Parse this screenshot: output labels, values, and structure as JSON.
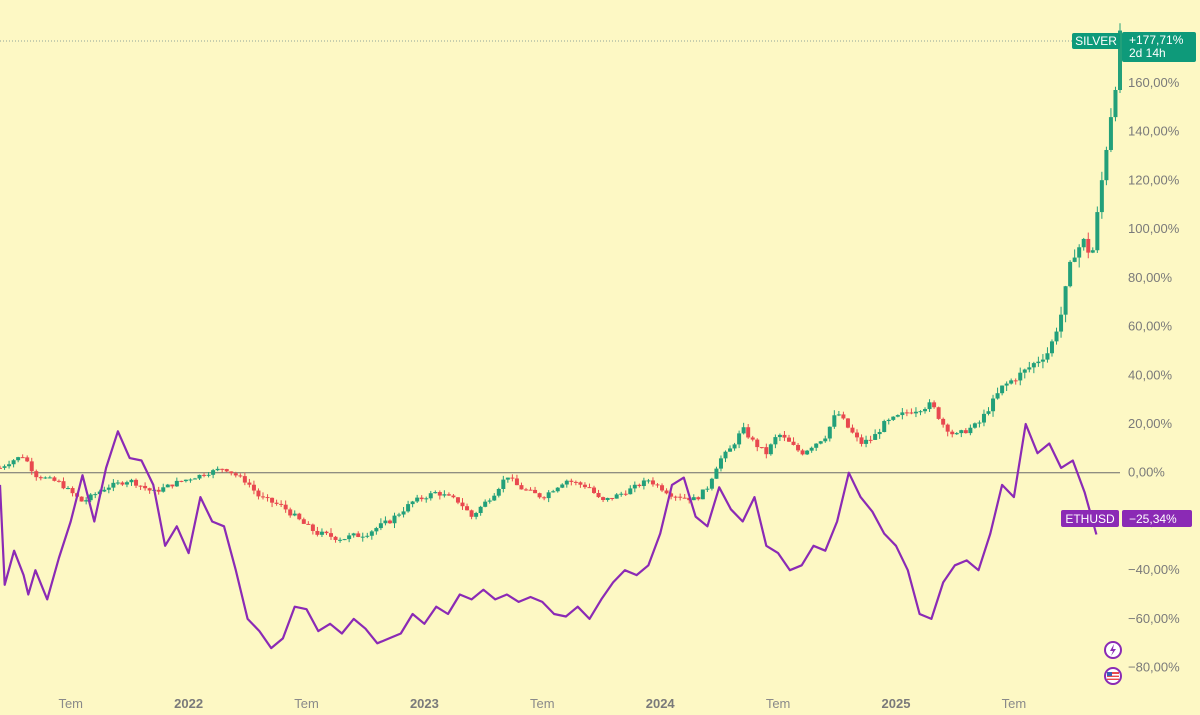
{
  "colors": {
    "background": "#fdf8c4",
    "silver_up": "#22a07a",
    "silver_down": "#e8494f",
    "silver_badge": "#0e9a7a",
    "eth_line": "#8b2ab5",
    "eth_badge": "#8b2ab5",
    "zero_line": "#6b6b6b"
  },
  "chart_data": {
    "type": "line",
    "title": "",
    "xlabel": "",
    "ylabel": "",
    "ylim": [
      -90,
      185
    ],
    "xlim": [
      2021.2,
      2025.95
    ],
    "y_ticks": [
      -80,
      -60,
      -40,
      -20,
      0,
      20,
      40,
      60,
      80,
      100,
      120,
      140,
      160
    ],
    "y_tick_labels": [
      "−80,00%",
      "−60,00%",
      "−40,00%",
      "−20,00%",
      "0,00%",
      "20,00%",
      "40,00%",
      "60,00%",
      "80,00%",
      "100,00%",
      "120,00%",
      "140,00%",
      "160,00%"
    ],
    "x_ticks": [
      {
        "x": 2021.5,
        "label": "Tem",
        "year": false
      },
      {
        "x": 2022.0,
        "label": "2022",
        "year": true
      },
      {
        "x": 2022.5,
        "label": "Tem",
        "year": false
      },
      {
        "x": 2023.0,
        "label": "2023",
        "year": true
      },
      {
        "x": 2023.5,
        "label": "Tem",
        "year": false
      },
      {
        "x": 2024.0,
        "label": "2024",
        "year": true
      },
      {
        "x": 2024.5,
        "label": "Tem",
        "year": false
      },
      {
        "x": 2025.0,
        "label": "2025",
        "year": true
      },
      {
        "x": 2025.5,
        "label": "Tem",
        "year": false
      }
    ],
    "grid": false,
    "series": [
      {
        "name": "SILVER",
        "kind": "candlestick",
        "last_value_label": "+177,71%",
        "countdown_label": "2d 14h",
        "anchors": [
          [
            2021.2,
            2
          ],
          [
            2021.25,
            5
          ],
          [
            2021.3,
            7
          ],
          [
            2021.35,
            -1
          ],
          [
            2021.45,
            -4
          ],
          [
            2021.55,
            -12
          ],
          [
            2021.65,
            -6
          ],
          [
            2021.75,
            -3
          ],
          [
            2021.85,
            -8
          ],
          [
            2021.95,
            -4
          ],
          [
            2022.05,
            -1
          ],
          [
            2022.15,
            2
          ],
          [
            2022.25,
            -4
          ],
          [
            2022.3,
            -10
          ],
          [
            2022.4,
            -14
          ],
          [
            2022.5,
            -22
          ],
          [
            2022.55,
            -25
          ],
          [
            2022.65,
            -27
          ],
          [
            2022.75,
            -25
          ],
          [
            2022.85,
            -20
          ],
          [
            2022.95,
            -12
          ],
          [
            2023.05,
            -8
          ],
          [
            2023.15,
            -12
          ],
          [
            2023.2,
            -18
          ],
          [
            2023.3,
            -8
          ],
          [
            2023.35,
            -1
          ],
          [
            2023.4,
            -6
          ],
          [
            2023.5,
            -10
          ],
          [
            2023.6,
            -3
          ],
          [
            2023.7,
            -6
          ],
          [
            2023.75,
            -12
          ],
          [
            2023.85,
            -8
          ],
          [
            2023.95,
            -3
          ],
          [
            2024.05,
            -9
          ],
          [
            2024.15,
            -11
          ],
          [
            2024.2,
            -6
          ],
          [
            2024.25,
            5
          ],
          [
            2024.3,
            10
          ],
          [
            2024.35,
            18
          ],
          [
            2024.4,
            12
          ],
          [
            2024.45,
            8
          ],
          [
            2024.5,
            16
          ],
          [
            2024.55,
            12
          ],
          [
            2024.6,
            8
          ],
          [
            2024.7,
            15
          ],
          [
            2024.75,
            25
          ],
          [
            2024.8,
            18
          ],
          [
            2024.85,
            12
          ],
          [
            2024.9,
            14
          ],
          [
            2024.95,
            20
          ],
          [
            2025.05,
            25
          ],
          [
            2025.15,
            28
          ],
          [
            2025.2,
            20
          ],
          [
            2025.25,
            15
          ],
          [
            2025.35,
            20
          ],
          [
            2025.45,
            35
          ],
          [
            2025.55,
            42
          ],
          [
            2025.65,
            50
          ],
          [
            2025.7,
            65
          ],
          [
            2025.75,
            90
          ],
          [
            2025.8,
            95
          ],
          [
            2025.83,
            88
          ],
          [
            2025.86,
            110
          ],
          [
            2025.9,
            140
          ],
          [
            2025.93,
            160
          ],
          [
            2025.95,
            177.71
          ]
        ]
      },
      {
        "name": "ETHUSD",
        "kind": "line",
        "last_value_label": "−25,34%",
        "points": [
          [
            2021.2,
            -5
          ],
          [
            2021.22,
            -46
          ],
          [
            2021.26,
            -32
          ],
          [
            2021.3,
            -42
          ],
          [
            2021.32,
            -50
          ],
          [
            2021.35,
            -40
          ],
          [
            2021.4,
            -52
          ],
          [
            2021.45,
            -35
          ],
          [
            2021.5,
            -20
          ],
          [
            2021.55,
            -1
          ],
          [
            2021.6,
            -20
          ],
          [
            2021.65,
            2
          ],
          [
            2021.7,
            17
          ],
          [
            2021.75,
            6
          ],
          [
            2021.8,
            5
          ],
          [
            2021.85,
            -5
          ],
          [
            2021.9,
            -30
          ],
          [
            2021.95,
            -22
          ],
          [
            2022.0,
            -33
          ],
          [
            2022.05,
            -10
          ],
          [
            2022.1,
            -20
          ],
          [
            2022.15,
            -22
          ],
          [
            2022.2,
            -40
          ],
          [
            2022.25,
            -60
          ],
          [
            2022.3,
            -65
          ],
          [
            2022.35,
            -72
          ],
          [
            2022.4,
            -68
          ],
          [
            2022.45,
            -55
          ],
          [
            2022.5,
            -56
          ],
          [
            2022.55,
            -65
          ],
          [
            2022.6,
            -62
          ],
          [
            2022.65,
            -66
          ],
          [
            2022.7,
            -60
          ],
          [
            2022.75,
            -64
          ],
          [
            2022.8,
            -70
          ],
          [
            2022.85,
            -68
          ],
          [
            2022.9,
            -66
          ],
          [
            2022.95,
            -58
          ],
          [
            2023.0,
            -62
          ],
          [
            2023.05,
            -55
          ],
          [
            2023.1,
            -58
          ],
          [
            2023.15,
            -50
          ],
          [
            2023.2,
            -52
          ],
          [
            2023.25,
            -48
          ],
          [
            2023.3,
            -52
          ],
          [
            2023.35,
            -50
          ],
          [
            2023.4,
            -53
          ],
          [
            2023.45,
            -51
          ],
          [
            2023.5,
            -53
          ],
          [
            2023.55,
            -58
          ],
          [
            2023.6,
            -59
          ],
          [
            2023.65,
            -55
          ],
          [
            2023.7,
            -60
          ],
          [
            2023.75,
            -52
          ],
          [
            2023.8,
            -45
          ],
          [
            2023.85,
            -40
          ],
          [
            2023.9,
            -42
          ],
          [
            2023.95,
            -38
          ],
          [
            2024.0,
            -25
          ],
          [
            2024.05,
            -5
          ],
          [
            2024.1,
            -2
          ],
          [
            2024.15,
            -18
          ],
          [
            2024.2,
            -22
          ],
          [
            2024.25,
            -6
          ],
          [
            2024.3,
            -15
          ],
          [
            2024.35,
            -20
          ],
          [
            2024.4,
            -10
          ],
          [
            2024.45,
            -30
          ],
          [
            2024.5,
            -33
          ],
          [
            2024.55,
            -40
          ],
          [
            2024.6,
            -38
          ],
          [
            2024.65,
            -30
          ],
          [
            2024.7,
            -32
          ],
          [
            2024.75,
            -20
          ],
          [
            2024.8,
            0
          ],
          [
            2024.85,
            -10
          ],
          [
            2024.9,
            -16
          ],
          [
            2024.95,
            -25
          ],
          [
            2025.0,
            -30
          ],
          [
            2025.05,
            -40
          ],
          [
            2025.1,
            -58
          ],
          [
            2025.15,
            -60
          ],
          [
            2025.2,
            -45
          ],
          [
            2025.25,
            -38
          ],
          [
            2025.3,
            -36
          ],
          [
            2025.35,
            -40
          ],
          [
            2025.4,
            -25
          ],
          [
            2025.45,
            -5
          ],
          [
            2025.5,
            -10
          ],
          [
            2025.55,
            20
          ],
          [
            2025.6,
            8
          ],
          [
            2025.65,
            12
          ],
          [
            2025.7,
            2
          ],
          [
            2025.75,
            5
          ],
          [
            2025.8,
            -8
          ],
          [
            2025.85,
            -25.34
          ]
        ]
      }
    ]
  }
}
